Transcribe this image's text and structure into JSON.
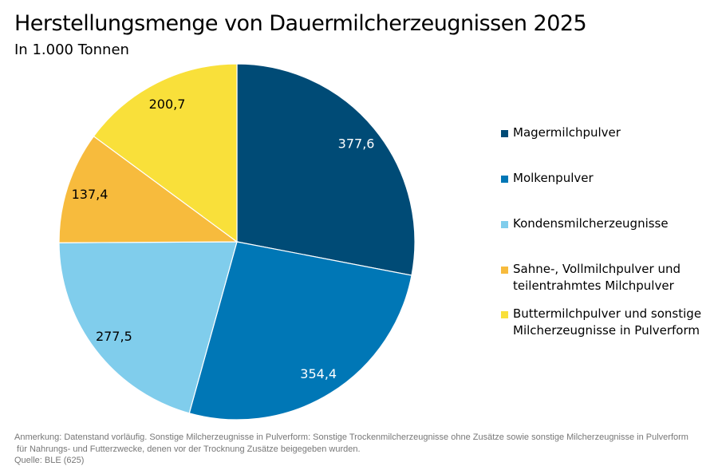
{
  "title": "Herstellungsmenge von Dauermilcherzeugnissen 2025",
  "subtitle": "In 1.000 Tonnen",
  "chart_data": {
    "type": "pie",
    "title": "Herstellungsmenge von Dauermilcherzeugnissen 2025",
    "subtitle": "In 1.000 Tonnen",
    "legend_position": "right",
    "slices": [
      {
        "name": "Magermilchpulver",
        "value": 377.6,
        "label": "377,6",
        "color": "#004b76",
        "label_color": "#ffffff"
      },
      {
        "name": "Molkenpulver",
        "value": 354.4,
        "label": "354,4",
        "color": "#0077b6",
        "label_color": "#ffffff"
      },
      {
        "name": "Kondensmilcherzeugnisse",
        "value": 277.5,
        "label": "277,5",
        "color": "#80cdec",
        "label_color": "#000000"
      },
      {
        "name": "Sahne-, Vollmilchpulver und teilentrahmtes Milchpulver",
        "value": 137.4,
        "label": "137,4",
        "color": "#f7bb3d",
        "label_color": "#000000"
      },
      {
        "name": "Buttermilchpulver und sonstige Milcherzeugnisse in Pulverform",
        "value": 200.7,
        "label": "200,7",
        "color": "#f9e03a",
        "label_color": "#000000"
      }
    ]
  },
  "legend": [
    {
      "lines": [
        "Magermilchpulver"
      ]
    },
    {
      "lines": [
        "Molkenpulver"
      ]
    },
    {
      "lines": [
        "Kondensmilcherzeugnisse"
      ]
    },
    {
      "lines": [
        "Sahne-, Vollmilchpulver und",
        "teilentrahmtes Milchpulver"
      ]
    },
    {
      "lines": [
        "Buttermilchpulver und sonstige",
        "Milcherzeugnisse in Pulverform"
      ]
    }
  ],
  "notes": {
    "line1": "Anmerkung: Datenstand vorläufig. Sonstige Milcherzeugnisse in Pulverform: Sonstige Trockenmilcherzeugnisse ohne Zusätze sowie sonstige Milcherzeugnisse in Pulverform",
    "line2": " für Nahrungs- und Futterzwecke, denen vor der Trocknung Zusätze beigegeben wurden.",
    "source": "Quelle: BLE (625)"
  }
}
